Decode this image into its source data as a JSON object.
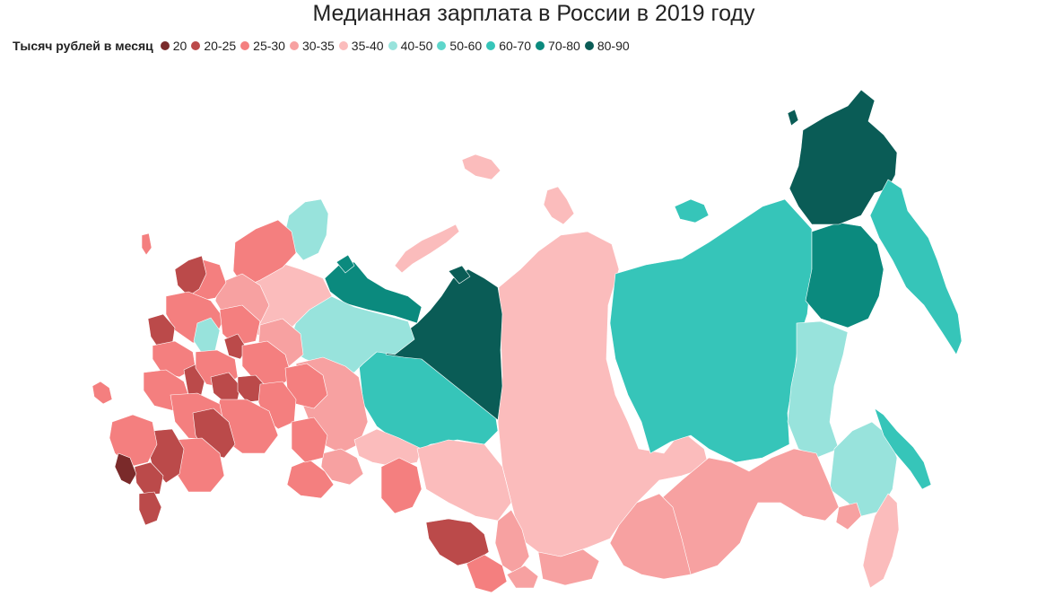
{
  "title": "Медианная зарплата в России в 2019 году",
  "legend": {
    "title": "Тысяч рублей в месяц",
    "items": [
      {
        "label": "20",
        "color": "#7a2a2a"
      },
      {
        "label": "20-25",
        "color": "#bb4a4a"
      },
      {
        "label": "25-30",
        "color": "#f47f7f"
      },
      {
        "label": "30-35",
        "color": "#f7a1a1"
      },
      {
        "label": "35-40",
        "color": "#fbbcbc"
      },
      {
        "label": "40-50",
        "color": "#98e3dc"
      },
      {
        "label": "50-60",
        "color": "#5ed6cb"
      },
      {
        "label": "60-70",
        "color": "#36c5b9"
      },
      {
        "label": "70-80",
        "color": "#0b8a7e"
      },
      {
        "label": "80-90",
        "color": "#0a5c56"
      }
    ]
  }
}
